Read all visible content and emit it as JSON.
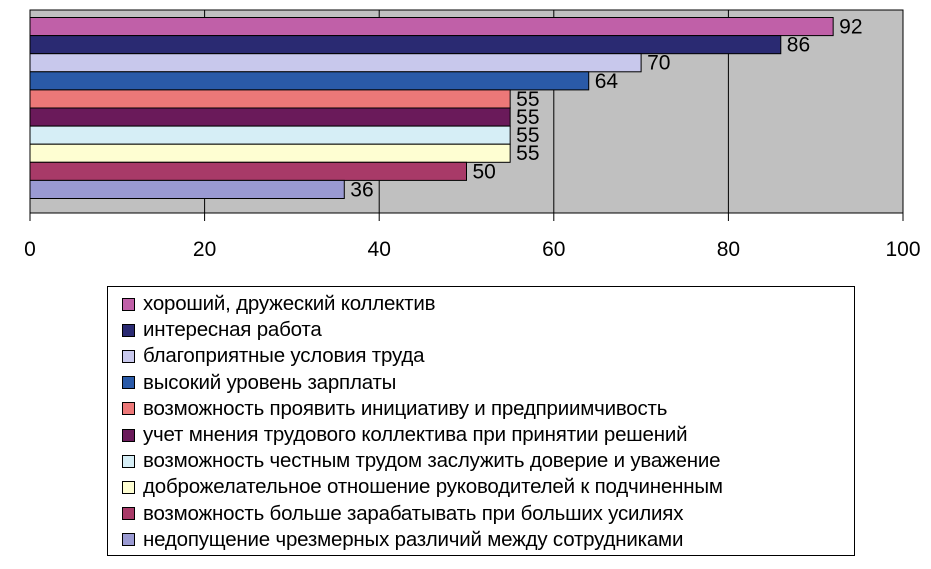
{
  "chart_data": {
    "type": "bar",
    "orientation": "horizontal",
    "title": "",
    "xlabel": "",
    "ylabel": "",
    "xlim": [
      0,
      100
    ],
    "x_ticks": [
      "0",
      "20",
      "40",
      "60",
      "80",
      "100"
    ],
    "grid": "vertical",
    "legend_position": "bottom",
    "plot_background": "#c0c0c0",
    "series": [
      {
        "name": "хороший, дружеский коллектив",
        "value": 92,
        "color": "#c060a8"
      },
      {
        "name": "интересная работа",
        "value": 86,
        "color": "#2a2a72"
      },
      {
        "name": "благоприятные условия труда",
        "value": 70,
        "color": "#c8c8ec"
      },
      {
        "name": "высокий уровень зарплаты",
        "value": 64,
        "color": "#2a5aa8"
      },
      {
        "name": "возможность проявить инициативу и предприимчивость",
        "value": 55,
        "color": "#ec7878"
      },
      {
        "name": "учет мнения трудового коллектива при принятии решений",
        "value": 55,
        "color": "#6a1a5a"
      },
      {
        "name": "возможность честным трудом заслужить доверие и уважение",
        "value": 55,
        "color": "#d6eef6"
      },
      {
        "name": "доброжелательное отношение руководителей к подчиненным",
        "value": 55,
        "color": "#fefed2"
      },
      {
        "name": "возможность больше зарабатывать при больших усилиях",
        "value": 50,
        "color": "#a83a68"
      },
      {
        "name": "недопущение чрезмерных различий между сотрудниками",
        "value": 36,
        "color": "#9a9ad2"
      }
    ]
  }
}
